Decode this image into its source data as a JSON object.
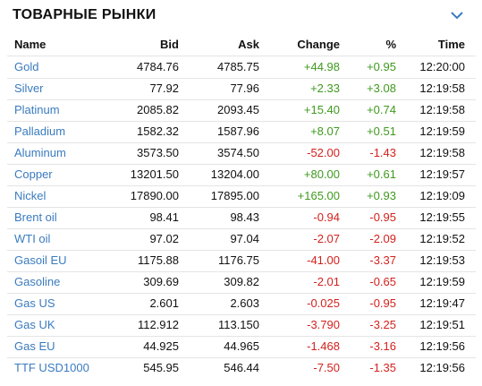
{
  "header": {
    "title": "ТОВАРНЫЕ РЫНКИ"
  },
  "table": {
    "columns": [
      "Name",
      "Bid",
      "Ask",
      "Change",
      "%",
      "Time"
    ],
    "rows": [
      [
        "Gold",
        "4784.76",
        "4785.75",
        "+44.98",
        "+0.95",
        "12:20:00"
      ],
      [
        "Silver",
        "77.92",
        "77.96",
        "+2.33",
        "+3.08",
        "12:19:58"
      ],
      [
        "Platinum",
        "2085.82",
        "2093.45",
        "+15.40",
        "+0.74",
        "12:19:58"
      ],
      [
        "Palladium",
        "1582.32",
        "1587.96",
        "+8.07",
        "+0.51",
        "12:19:59"
      ],
      [
        "Aluminum",
        "3573.50",
        "3574.50",
        "-52.00",
        "-1.43",
        "12:19:58"
      ],
      [
        "Copper",
        "13201.50",
        "13204.00",
        "+80.00",
        "+0.61",
        "12:19:57"
      ],
      [
        "Nickel",
        "17890.00",
        "17895.00",
        "+165.00",
        "+0.93",
        "12:19:09"
      ],
      [
        "Brent oil",
        "98.41",
        "98.43",
        "-0.94",
        "-0.95",
        "12:19:55"
      ],
      [
        "WTI oil",
        "97.02",
        "97.04",
        "-2.07",
        "-2.09",
        "12:19:52"
      ],
      [
        "Gasoil EU",
        "1175.88",
        "1176.75",
        "-41.00",
        "-3.37",
        "12:19:53"
      ],
      [
        "Gasoline",
        "309.69",
        "309.82",
        "-2.01",
        "-0.65",
        "12:19:59"
      ],
      [
        "Gas US",
        "2.601",
        "2.603",
        "-0.025",
        "-0.95",
        "12:19:47"
      ],
      [
        "Gas UK",
        "112.912",
        "113.150",
        "-3.790",
        "-3.25",
        "12:19:51"
      ],
      [
        "Gas EU",
        "44.925",
        "44.965",
        "-1.468",
        "-3.16",
        "12:19:56"
      ],
      [
        "TTF USD1000",
        "545.95",
        "546.44",
        "-7.50",
        "-1.35",
        "12:19:56"
      ]
    ]
  }
}
